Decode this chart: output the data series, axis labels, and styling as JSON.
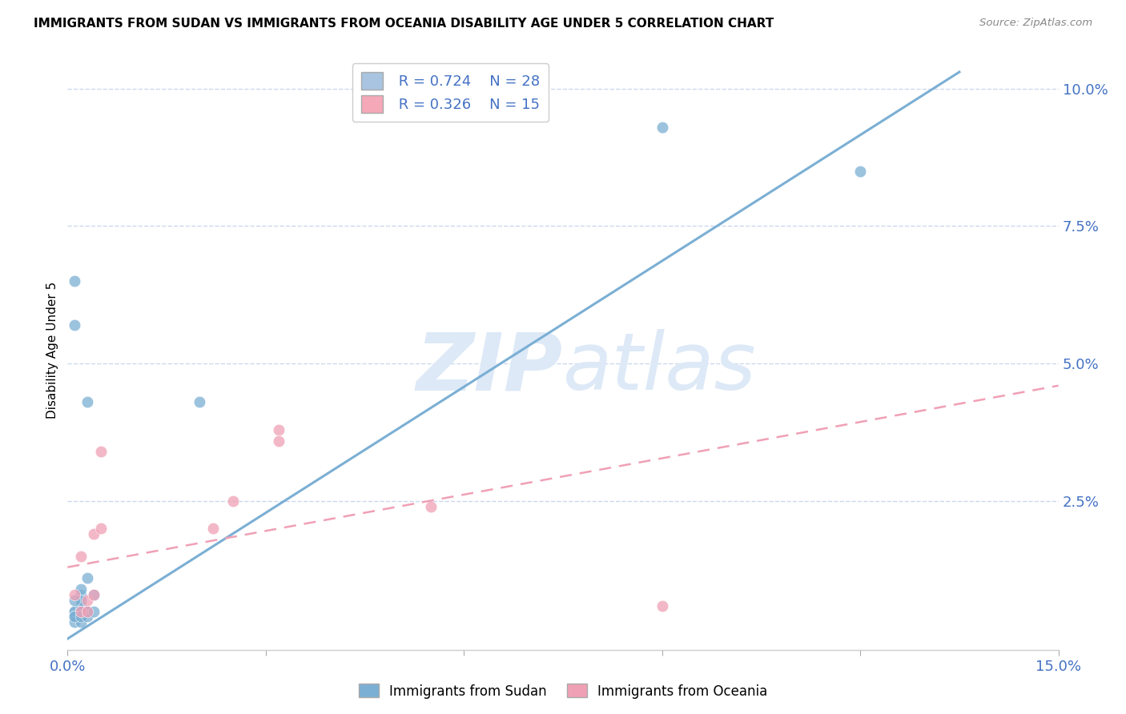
{
  "title": "IMMIGRANTS FROM SUDAN VS IMMIGRANTS FROM OCEANIA DISABILITY AGE UNDER 5 CORRELATION CHART",
  "source": "Source: ZipAtlas.com",
  "ylabel": "Disability Age Under 5",
  "ytick_labels": [
    "2.5%",
    "5.0%",
    "7.5%",
    "10.0%"
  ],
  "ytick_values": [
    0.025,
    0.05,
    0.075,
    0.1
  ],
  "xlim": [
    0.0,
    0.15
  ],
  "ylim": [
    -0.002,
    0.107
  ],
  "legend_entry1": {
    "R": "0.724",
    "N": "28",
    "color": "#a8c4e0"
  },
  "legend_entry2": {
    "R": "0.326",
    "N": "15",
    "color": "#f4a8b8"
  },
  "sudan_color": "#7bafd4",
  "oceania_color": "#f0a0b5",
  "sudan_scatter_x": [
    0.001,
    0.002,
    0.001,
    0.001,
    0.002,
    0.002,
    0.001,
    0.001,
    0.002,
    0.002,
    0.003,
    0.003,
    0.002,
    0.002,
    0.003,
    0.002,
    0.001,
    0.001,
    0.002,
    0.003,
    0.004,
    0.004,
    0.003,
    0.001,
    0.001,
    0.02,
    0.09,
    0.12
  ],
  "sudan_scatter_y": [
    0.005,
    0.005,
    0.004,
    0.005,
    0.006,
    0.005,
    0.004,
    0.003,
    0.004,
    0.003,
    0.005,
    0.005,
    0.008,
    0.007,
    0.011,
    0.009,
    0.007,
    0.004,
    0.004,
    0.004,
    0.008,
    0.005,
    0.043,
    0.057,
    0.065,
    0.043,
    0.093,
    0.085
  ],
  "oceania_scatter_x": [
    0.002,
    0.002,
    0.003,
    0.004,
    0.003,
    0.004,
    0.005,
    0.005,
    0.022,
    0.025,
    0.032,
    0.032,
    0.055,
    0.09,
    0.001
  ],
  "oceania_scatter_y": [
    0.005,
    0.015,
    0.007,
    0.008,
    0.005,
    0.019,
    0.02,
    0.034,
    0.02,
    0.025,
    0.038,
    0.036,
    0.024,
    0.006,
    0.008
  ],
  "sudan_line_x": [
    0.0,
    0.135
  ],
  "sudan_line_y": [
    0.0,
    0.103
  ],
  "oceania_line_x": [
    0.0,
    0.15
  ],
  "oceania_line_y": [
    0.013,
    0.046
  ],
  "background_color": "#ffffff",
  "grid_color": "#ccd8ee",
  "title_fontsize": 11,
  "axis_label_color": "#4472c4",
  "watermark_zip": "ZIP",
  "watermark_atlas": "atlas",
  "watermark_color": "#dde9f7"
}
